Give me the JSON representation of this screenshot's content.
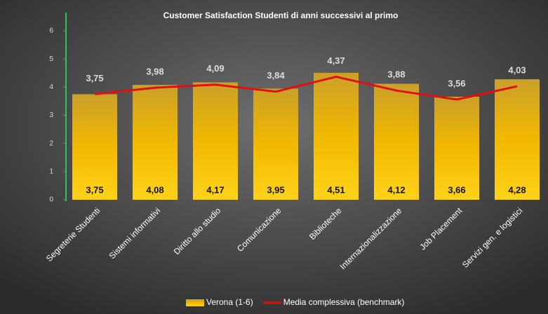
{
  "chart_data": {
    "type": "bar",
    "title": "Customer Satisfaction Studenti di anni successivi al primo",
    "categories": [
      "Segreterie Studenti",
      "Sistemi informativi",
      "Diritto allo studio",
      "Comunicazione",
      "Biblioteche",
      "Internazionalizzazione",
      "Job Placement",
      "Servizi gen. e logistici"
    ],
    "series": [
      {
        "name": "Verona (1-6)",
        "type": "bar",
        "color": "#f2b600",
        "values": [
          3.75,
          4.08,
          4.17,
          3.95,
          4.51,
          4.12,
          3.66,
          4.28
        ],
        "value_labels": [
          "3,75",
          "4,08",
          "4,17",
          "3,95",
          "4,51",
          "4,12",
          "3,66",
          "4,28"
        ]
      },
      {
        "name": "Media complessiva (benchmark)",
        "type": "line",
        "color": "#e01010",
        "values": [
          3.75,
          3.98,
          4.09,
          3.84,
          4.37,
          3.88,
          3.56,
          4.03
        ],
        "value_labels": [
          "3,75",
          "3,98",
          "4,09",
          "3,84",
          "4,37",
          "3,88",
          "3,56",
          "4,03"
        ]
      }
    ],
    "ylim": [
      0,
      6.2
    ],
    "yticks": [
      0,
      1,
      2,
      3,
      4,
      5,
      6
    ],
    "legend": "bottom"
  }
}
